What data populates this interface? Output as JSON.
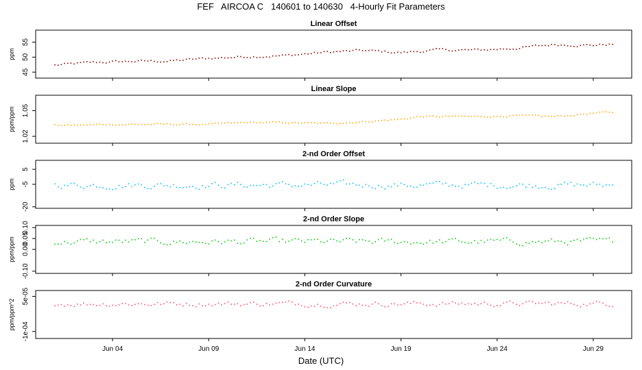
{
  "title": "FEF   AIRCOA C   140601 to 140630   4-Hourly Fit Parameters",
  "x_axis": {
    "label": "Date (UTC)",
    "start_day": 1,
    "end_day": 32,
    "data_start_day": 2,
    "data_end_day": 31,
    "ticks": [
      {
        "day": 5,
        "label": "Jun 04"
      },
      {
        "day": 10,
        "label": "Jun 09"
      },
      {
        "day": 15,
        "label": "Jun 14"
      },
      {
        "day": 20,
        "label": "Jun 19"
      },
      {
        "day": 25,
        "label": "Jun 24"
      },
      {
        "day": 30,
        "label": "Jun 29"
      }
    ]
  },
  "chart_data": [
    {
      "type": "line",
      "title": "Linear Offset",
      "ylabel": "ppm",
      "color": "#8b0000",
      "ylim": [
        43,
        59
      ],
      "yticks": [
        {
          "v": 45,
          "l": "45"
        },
        {
          "v": 50,
          "l": "50"
        },
        {
          "v": 55,
          "l": "55"
        }
      ],
      "trend": {
        "x": [
          2,
          4,
          6,
          8,
          10,
          12,
          14,
          16,
          18,
          20,
          22,
          24,
          26,
          28,
          30,
          31
        ],
        "y": [
          47.3,
          48.2,
          48.6,
          48.7,
          49.6,
          50.2,
          50.5,
          51.6,
          52.2,
          51.5,
          52.4,
          52.3,
          53.0,
          54.2,
          54.0,
          54.3
        ]
      },
      "noise": 0.35
    },
    {
      "type": "line",
      "title": "Linear Slope",
      "ylabel": "ppm/ppm",
      "color": "#ffa500",
      "ylim": [
        1.012,
        1.068
      ],
      "yticks": [
        {
          "v": 1.02,
          "l": "1.02"
        },
        {
          "v": 1.05,
          "l": "1.05"
        }
      ],
      "trend": {
        "x": [
          2,
          3,
          5,
          8,
          10,
          12,
          14,
          16,
          18,
          20,
          21,
          24,
          26,
          28,
          30,
          31
        ],
        "y": [
          1.033,
          1.033,
          1.034,
          1.034,
          1.034,
          1.036,
          1.036,
          1.035,
          1.037,
          1.04,
          1.043,
          1.043,
          1.044,
          1.043,
          1.047,
          1.048
        ]
      },
      "noise": 0.0008
    },
    {
      "type": "line",
      "title": "2-nd Order Offset",
      "ylabel": "ppm",
      "color": "#00bfff",
      "ylim": [
        -21,
        11
      ],
      "yticks": [
        {
          "v": -20,
          "l": "-20"
        },
        {
          "v": -5,
          "l": "-5"
        },
        {
          "v": 5,
          "l": "5"
        }
      ],
      "trend": {
        "x": [
          2,
          31
        ],
        "y": [
          -5.5,
          -5.5
        ]
      },
      "noise": 1.8
    },
    {
      "type": "line",
      "title": "2-nd Order Slope",
      "ylabel": "ppm/ppm",
      "color": "#00cc00",
      "ylim": [
        -0.11,
        0.11
      ],
      "yticks": [
        {
          "v": -0.1,
          "l": "-0.10"
        },
        {
          "v": 0.0,
          "l": "0.00"
        },
        {
          "v": 0.05,
          "l": "0.05"
        },
        {
          "v": 0.1,
          "l": "0.10"
        }
      ],
      "trend": {
        "x": [
          2,
          31
        ],
        "y": [
          0.035,
          0.035
        ]
      },
      "noise": 0.012
    },
    {
      "type": "line",
      "title": "2-nd Order Curvature",
      "ylabel": "ppm/ppm^2",
      "color": "#ff4f6e",
      "ylim": [
        -0.00013,
        7.5e-05
      ],
      "yticks": [
        {
          "v": -0.0001,
          "l": "-1e-04"
        },
        {
          "v": 5e-05,
          "l": "5e-05"
        }
      ],
      "trend": {
        "x": [
          2,
          31
        ],
        "y": [
          1.85e-05,
          1.85e-05
        ]
      },
      "noise": 9e-06
    }
  ]
}
